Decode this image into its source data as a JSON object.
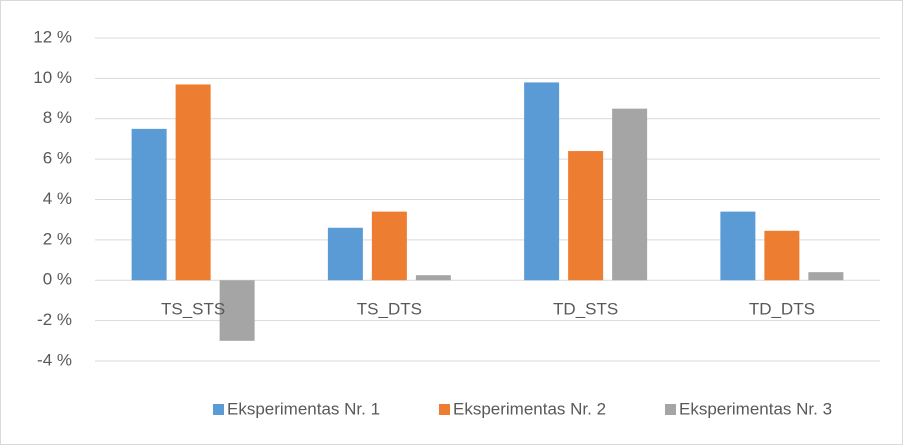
{
  "chart_data": {
    "type": "bar",
    "categories": [
      "TS_STS",
      "TS_DTS",
      "TD_STS",
      "TD_DTS"
    ],
    "series": [
      {
        "name": "Eksperimentas Nr. 1",
        "color": "#5b9bd5",
        "values": [
          7.5,
          2.6,
          9.8,
          3.4
        ]
      },
      {
        "name": "Eksperimentas Nr. 2",
        "color": "#ed7d31",
        "values": [
          9.7,
          3.4,
          6.4,
          2.45
        ]
      },
      {
        "name": "Eksperimentas Nr. 3",
        "color": "#a5a5a5",
        "values": [
          -3.0,
          0.25,
          8.5,
          0.4
        ]
      }
    ],
    "ylim": [
      -4,
      12
    ],
    "yticks": [
      {
        "value": -4,
        "label": "-4 %"
      },
      {
        "value": -2,
        "label": "-2 %"
      },
      {
        "value": 0,
        "label": "0 %"
      },
      {
        "value": 2,
        "label": "2 %"
      },
      {
        "value": 4,
        "label": "4 %"
      },
      {
        "value": 6,
        "label": "6 %"
      },
      {
        "value": 8,
        "label": "8 %"
      },
      {
        "value": 10,
        "label": "10 %"
      },
      {
        "value": 12,
        "label": "12 %"
      }
    ],
    "grid": true,
    "legend": "bottom"
  }
}
